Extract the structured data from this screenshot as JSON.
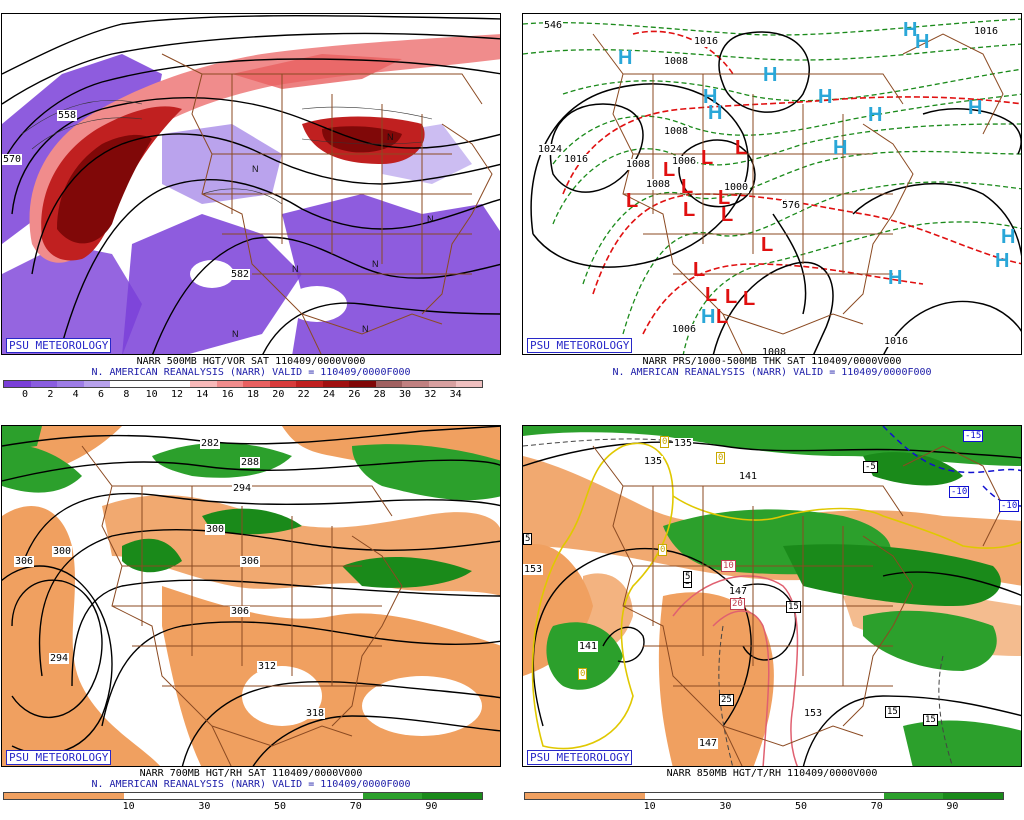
{
  "psu_label": "PSU METEOROLOGY",
  "panels": [
    {
      "id": "tl",
      "title_line1": "NARR 500MB HGT/VOR SAT 110409/0000V000",
      "title_line2": "N. AMERICAN REANALYSIS (NARR) VALID = 110409/0000F000",
      "colorbar_colors": [
        "#7a3fd8",
        "#8a5de0",
        "#9d7ce6",
        "#b7a1ec",
        "#ffffff",
        "#ffffff",
        "#ffffff",
        "#f7b9b9",
        "#f08c8c",
        "#e86060",
        "#d83c3c",
        "#c02020",
        "#a01010",
        "#800808",
        "#a06060",
        "#c08080",
        "#d8a0a0",
        "#f0c0c0"
      ],
      "colorbar_labels": [
        "0",
        "2",
        "4",
        "6",
        "8",
        "10",
        "12",
        "14",
        "16",
        "18",
        "20",
        "22",
        "24",
        "26",
        "28",
        "30",
        "32",
        "34"
      ],
      "contour_labels": [
        "558",
        "582",
        "570"
      ]
    },
    {
      "id": "tr",
      "title_line1": "NARR PRS/1000-500MB THK SAT 110409/0000V000",
      "title_line2": "N. AMERICAN REANALYSIS (NARR) VALID = 110409/0000F000",
      "contour_labels": [
        "1008",
        "1008",
        "1024",
        "1016",
        "1006",
        "1008",
        "1000",
        "1008",
        "1016",
        "1006",
        "1016",
        "1008",
        "546",
        "576",
        "1016"
      ],
      "highs": [
        "H",
        "H",
        "H",
        "H",
        "H",
        "H",
        "H",
        "H",
        "H",
        "H",
        "H",
        "H",
        "H",
        "H"
      ],
      "lows": [
        "L",
        "L",
        "L",
        "L",
        "L",
        "L",
        "L",
        "L",
        "L",
        "L",
        "L",
        "L",
        "L",
        "L"
      ]
    },
    {
      "id": "bl",
      "title_line1": "NARR 700MB HGT/RH SAT 110409/0000V000",
      "title_line2": "N. AMERICAN REANALYSIS (NARR) VALID = 110409/0000F000",
      "colorbar_colors": [
        "#f0a060",
        "#f0a060",
        "#ffffff",
        "#ffffff",
        "#ffffff",
        "#ffffff",
        "#2ca02c",
        "#1a8a1a"
      ],
      "colorbar_labels": [
        "10",
        "30",
        "50",
        "70",
        "90"
      ],
      "contour_labels": [
        "282",
        "288",
        "294",
        "300",
        "306",
        "300",
        "294",
        "306",
        "312",
        "318",
        "306"
      ]
    },
    {
      "id": "br",
      "title_line1": "NARR 850MB HGT/T/RH 110409/0000V000",
      "title_line2": "",
      "colorbar_colors": [
        "#f0a060",
        "#f0a060",
        "#ffffff",
        "#ffffff",
        "#ffffff",
        "#ffffff",
        "#2ca02c",
        "#1a8a1a"
      ],
      "colorbar_labels": [
        "10",
        "30",
        "50",
        "70",
        "90"
      ],
      "contour_labels": [
        "135",
        "135",
        "141",
        "147",
        "141",
        "153",
        "153",
        "147"
      ],
      "temp_boxes": [
        "-15",
        "-5",
        "-10",
        "-10",
        "5",
        "5",
        "0",
        "0",
        "10",
        "20",
        "15",
        "15",
        "15",
        "25",
        "5",
        "0",
        "0"
      ]
    }
  ]
}
